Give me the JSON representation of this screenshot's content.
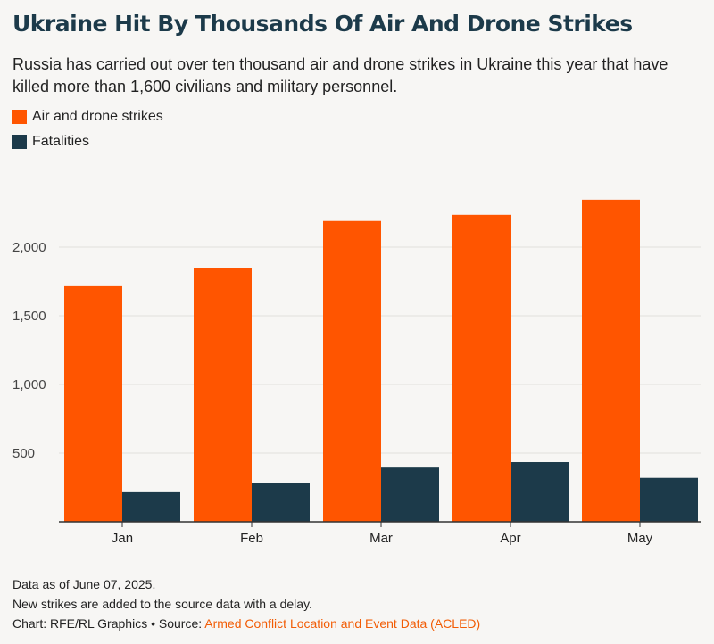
{
  "header": {
    "title": "Ukraine Hit By Thousands Of Air And Drone Strikes",
    "subtitle": "Russia has carried out over ten thousand air and drone strikes in Ukraine this year that have killed more than 1,600 civilians and military personnel."
  },
  "colors": {
    "strikes": "#ff5500",
    "fatalities": "#1c3a4a",
    "grid": "#e2e0dc",
    "axis": "#333333"
  },
  "chart_data": {
    "type": "bar",
    "categories": [
      "Jan",
      "Feb",
      "Mar",
      "Apr",
      "May"
    ],
    "series": [
      {
        "name": "Air and drone strikes",
        "values": [
          1715,
          1850,
          2190,
          2235,
          2345
        ]
      },
      {
        "name": "Fatalities",
        "values": [
          215,
          285,
          395,
          435,
          320
        ]
      }
    ],
    "yticks": [
      500,
      1000,
      1500,
      2000
    ],
    "ytick_labels": [
      "500",
      "1,000",
      "1,500",
      "2,000"
    ],
    "ylim": [
      0,
      2500
    ],
    "grid": true,
    "legend_position": "top-left"
  },
  "footer": {
    "note1": "Data as of June 07, 2025.",
    "note2": "New strikes are added to the source data with a delay.",
    "credit_prefix": "Chart: RFE/RL Graphics • Source: ",
    "source_link": "Armed Conflict Location and Event Data (ACLED)"
  }
}
